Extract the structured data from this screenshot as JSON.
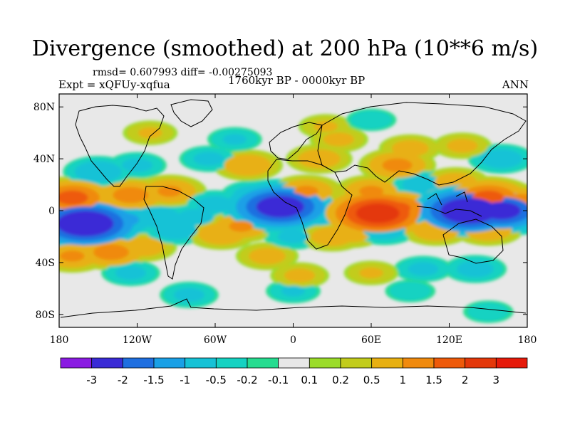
{
  "title": "Divergence (smoothed) at 200 hPa (10**6 m/s)",
  "stats": "rmsd= 0.607993 diff= -0.00275093",
  "experiment": "Expt = xQFUy-xqfua",
  "period": "1760kyr BP - 0000kyr BP",
  "season": "ANN",
  "chart_data": {
    "type": "heatmap",
    "variable": "Divergence (smoothed) at 200 hPa",
    "units": "10**6 m/s",
    "projection": "cylindrical equidistant",
    "lon_range": [
      -180,
      180
    ],
    "lat_range": [
      -90,
      90
    ],
    "lat_ticks": [
      {
        "value": 80,
        "label": "80N"
      },
      {
        "value": 40,
        "label": "40N"
      },
      {
        "value": 0,
        "label": "0"
      },
      {
        "value": -40,
        "label": "40S"
      },
      {
        "value": -80,
        "label": "80S"
      }
    ],
    "lon_ticks": [
      {
        "value": -180,
        "label": "180"
      },
      {
        "value": -120,
        "label": "120W"
      },
      {
        "value": -60,
        "label": "60W"
      },
      {
        "value": 0,
        "label": "0"
      },
      {
        "value": 60,
        "label": "60E"
      },
      {
        "value": 120,
        "label": "120E"
      },
      {
        "value": 180,
        "label": "180"
      }
    ],
    "levels": [
      "-3",
      "-2",
      "-1.5",
      "-1",
      "-0.5",
      "-0.2",
      "-0.1",
      "0.1",
      "0.2",
      "0.5",
      "1",
      "1.5",
      "2",
      "3"
    ],
    "colors": [
      "#8a1be2",
      "#3a2bd6",
      "#1f6fe0",
      "#1aa0e6",
      "#16c2d6",
      "#15d2c2",
      "#26dc90",
      "#e8e8e8",
      "#9bdc2a",
      "#c2cc1c",
      "#e8b012",
      "#f08a0e",
      "#ee5a0a",
      "#e4380a",
      "#e61a0a"
    ],
    "anomalies": [
      {
        "lon": -160,
        "lat": -10,
        "value": -2.6
      },
      {
        "lon": -150,
        "lat": -12,
        "value": -1.6
      },
      {
        "lon": -130,
        "lat": -7,
        "value": -1.1
      },
      {
        "lon": -105,
        "lat": -5,
        "value": -0.9
      },
      {
        "lon": -170,
        "lat": 10,
        "value": 1.6
      },
      {
        "lon": -125,
        "lat": 12,
        "value": 1.2
      },
      {
        "lon": -95,
        "lat": 15,
        "value": 1.0
      },
      {
        "lon": -150,
        "lat": 30,
        "value": -0.9
      },
      {
        "lon": -120,
        "lat": 35,
        "value": -0.6
      },
      {
        "lon": -170,
        "lat": -35,
        "value": 1.0
      },
      {
        "lon": -140,
        "lat": -32,
        "value": 1.2
      },
      {
        "lon": -115,
        "lat": -28,
        "value": 0.8
      },
      {
        "lon": -125,
        "lat": -48,
        "value": -0.6
      },
      {
        "lon": -90,
        "lat": -15,
        "value": -0.8
      },
      {
        "lon": -75,
        "lat": -5,
        "value": -0.7
      },
      {
        "lon": -60,
        "lat": 5,
        "value": -0.7
      },
      {
        "lon": -55,
        "lat": -18,
        "value": 0.9
      },
      {
        "lon": -40,
        "lat": -12,
        "value": 1.0
      },
      {
        "lon": -30,
        "lat": 12,
        "value": -0.8
      },
      {
        "lon": -10,
        "lat": 3,
        "value": -2.4
      },
      {
        "lon": -25,
        "lat": 3,
        "value": -1.2
      },
      {
        "lon": -35,
        "lat": 35,
        "value": 0.9
      },
      {
        "lon": -65,
        "lat": 40,
        "value": -0.6
      },
      {
        "lon": -45,
        "lat": 55,
        "value": -0.5
      },
      {
        "lon": -20,
        "lat": -35,
        "value": 0.7
      },
      {
        "lon": 0,
        "lat": -20,
        "value": -0.6
      },
      {
        "lon": 10,
        "lat": 15,
        "value": 1.0
      },
      {
        "lon": 20,
        "lat": 40,
        "value": 0.8
      },
      {
        "lon": 35,
        "lat": 55,
        "value": 0.6
      },
      {
        "lon": 25,
        "lat": 65,
        "value": 0.5
      },
      {
        "lon": 20,
        "lat": -5,
        "value": -0.7
      },
      {
        "lon": 30,
        "lat": -20,
        "value": 0.8
      },
      {
        "lon": 45,
        "lat": -18,
        "value": 0.7
      },
      {
        "lon": 65,
        "lat": -2,
        "value": 2.3
      },
      {
        "lon": 80,
        "lat": 2,
        "value": 1.5
      },
      {
        "lon": 70,
        "lat": -15,
        "value": -0.8
      },
      {
        "lon": 60,
        "lat": 15,
        "value": 1.0
      },
      {
        "lon": 80,
        "lat": 35,
        "value": 1.1
      },
      {
        "lon": 90,
        "lat": 48,
        "value": 0.7
      },
      {
        "lon": 100,
        "lat": 20,
        "value": -0.8
      },
      {
        "lon": 125,
        "lat": 22,
        "value": 0.8
      },
      {
        "lon": 120,
        "lat": 8,
        "value": 1.1
      },
      {
        "lon": 135,
        "lat": 0,
        "value": -2.6
      },
      {
        "lon": 160,
        "lat": 0,
        "value": -2.2
      },
      {
        "lon": 175,
        "lat": 5,
        "value": 1.4
      },
      {
        "lon": 150,
        "lat": 10,
        "value": 1.6
      },
      {
        "lon": 110,
        "lat": -15,
        "value": 0.9
      },
      {
        "lon": 150,
        "lat": -15,
        "value": 0.9
      },
      {
        "lon": 100,
        "lat": -45,
        "value": -0.6
      },
      {
        "lon": 140,
        "lat": -45,
        "value": -0.7
      },
      {
        "lon": 160,
        "lat": 40,
        "value": -0.8
      },
      {
        "lon": 130,
        "lat": 50,
        "value": 0.6
      },
      {
        "lon": -80,
        "lat": -65,
        "value": -0.6
      },
      {
        "lon": 0,
        "lat": -62,
        "value": -0.5
      },
      {
        "lon": 90,
        "lat": -62,
        "value": -0.4
      },
      {
        "lon": 150,
        "lat": -78,
        "value": -0.4
      },
      {
        "lon": -110,
        "lat": 60,
        "value": 0.5
      },
      {
        "lon": 60,
        "lat": 70,
        "value": -0.4
      },
      {
        "lon": 5,
        "lat": -50,
        "value": 0.6
      },
      {
        "lon": 60,
        "lat": -48,
        "value": 0.5
      }
    ]
  }
}
